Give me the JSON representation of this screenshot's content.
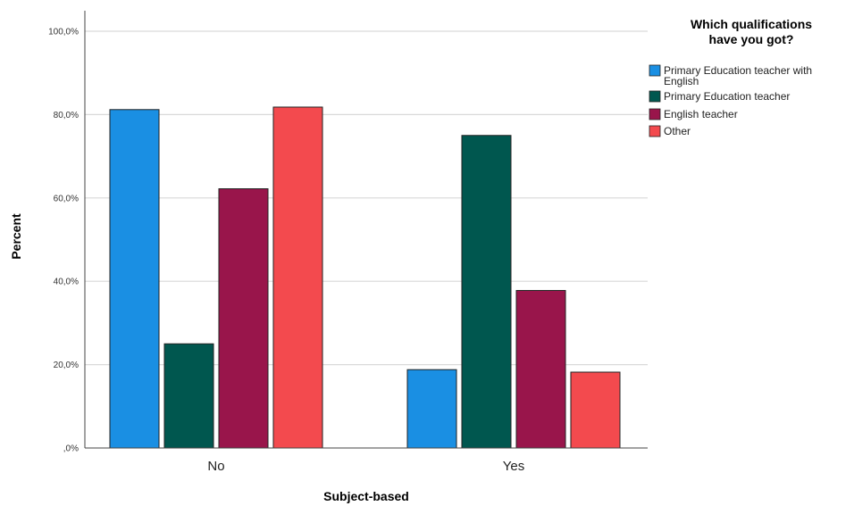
{
  "chart_data": {
    "type": "bar",
    "xlabel": "Subject-based",
    "ylabel": "Percent",
    "categories": [
      "No",
      "Yes"
    ],
    "yticks": [
      0,
      20,
      40,
      60,
      80,
      100
    ],
    "ytick_labels": [
      ",0%",
      "20,0%",
      "40,0%",
      "60,0%",
      "80,0%",
      "100,0%"
    ],
    "ylim": [
      0,
      100
    ],
    "grid": true,
    "legend": {
      "title_lines": [
        "Which qualifications",
        "have you got?"
      ],
      "placement": "top-right"
    },
    "series": [
      {
        "name_lines": [
          "Primary Education teacher with",
          "English"
        ],
        "color": "#1a8fe3",
        "values": [
          81.2,
          18.8
        ]
      },
      {
        "name_lines": [
          "Primary Education teacher"
        ],
        "color": "#00574f",
        "values": [
          25.0,
          75.0
        ]
      },
      {
        "name_lines": [
          "English teacher"
        ],
        "color": "#99154b",
        "values": [
          62.2,
          37.8
        ]
      },
      {
        "name_lines": [
          "Other"
        ],
        "color": "#f34a4e",
        "values": [
          81.8,
          18.2
        ]
      }
    ]
  }
}
